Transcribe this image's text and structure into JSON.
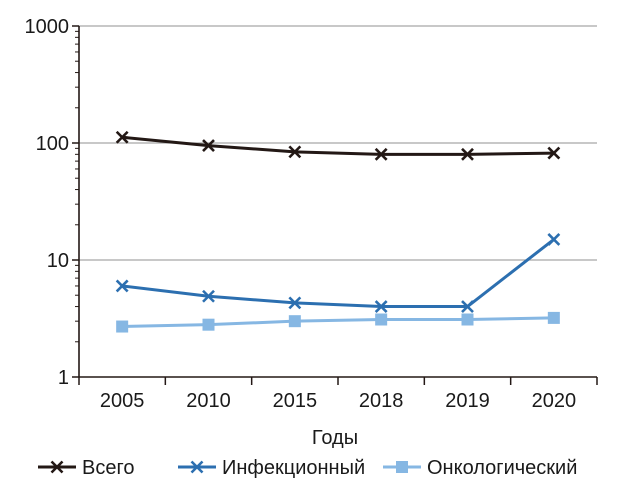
{
  "chart_data": {
    "type": "line",
    "xlabel": "Годы",
    "ylabel": "",
    "categories": [
      "2005",
      "2010",
      "2015",
      "2018",
      "2019",
      "2020"
    ],
    "yscale": "log",
    "ylim": [
      1,
      1000
    ],
    "yticks": [
      {
        "value": 1,
        "label": "1"
      },
      {
        "value": 10,
        "label": "10"
      },
      {
        "value": 100,
        "label": "100"
      },
      {
        "value": 1000,
        "label": "1000"
      }
    ],
    "grid": true,
    "legend": "bottom",
    "series": [
      {
        "name": "Всего",
        "values": [
          112,
          95,
          84,
          80,
          80,
          82
        ],
        "color": "#231815",
        "marker": "x"
      },
      {
        "name": "Инфекционный",
        "values": [
          6.0,
          4.9,
          4.3,
          4.0,
          4.0,
          15.0
        ],
        "color": "#2c6fb0",
        "marker": "x"
      },
      {
        "name": "Онкологический",
        "values": [
          2.7,
          2.8,
          3.0,
          3.1,
          3.1,
          3.2
        ],
        "color": "#86b7e3",
        "marker": "square"
      }
    ]
  }
}
